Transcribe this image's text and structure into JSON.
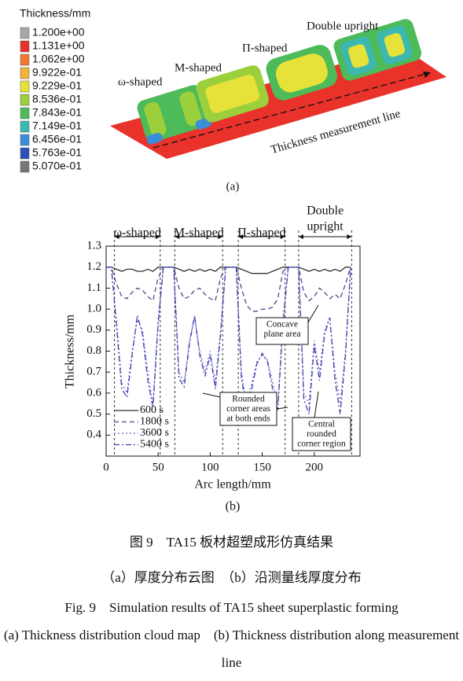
{
  "figure_a": {
    "legend_title": "Thickness/mm",
    "legend": [
      {
        "label": "1.200e+00",
        "color": "#a8a8a8"
      },
      {
        "label": "1.131e+00",
        "color": "#e8322a"
      },
      {
        "label": "1.062e+00",
        "color": "#f07830"
      },
      {
        "label": "9.922e-01",
        "color": "#f5b238"
      },
      {
        "label": "9.229e-01",
        "color": "#e6e23a"
      },
      {
        "label": "8.536e-01",
        "color": "#9ccf3c"
      },
      {
        "label": "7.843e-01",
        "color": "#4dbb5a"
      },
      {
        "label": "7.149e-01",
        "color": "#3cb8b0"
      },
      {
        "label": "6.456e-01",
        "color": "#3a8ed8"
      },
      {
        "label": "5.763e-01",
        "color": "#2c4fb8"
      },
      {
        "label": "5.070e-01",
        "color": "#777777"
      }
    ],
    "shape_labels": [
      "ω-shaped",
      "M-shaped",
      "Π-shaped",
      "Double upright"
    ],
    "line_label": "Thickness measurement line",
    "panel_label": "(a)"
  },
  "chart_data": {
    "type": "line",
    "xlabel": "Arc length/mm",
    "ylabel": "Thickness/mm",
    "panel_label": "(b)",
    "xlim": [
      0,
      244
    ],
    "ylim": [
      0.3,
      1.3
    ],
    "xticks": [
      0,
      50,
      100,
      150,
      200
    ],
    "yticks": [
      0.4,
      0.5,
      0.6,
      0.7,
      0.8,
      0.9,
      {
        "value": 1,
        "label": "1.0"
      },
      1.1,
      1.2,
      1.3
    ],
    "x": [
      0,
      5,
      10,
      15,
      20,
      25,
      30,
      35,
      40,
      45,
      50,
      55,
      60,
      65,
      70,
      75,
      80,
      85,
      90,
      95,
      100,
      105,
      110,
      115,
      120,
      125,
      130,
      135,
      140,
      145,
      150,
      155,
      160,
      165,
      170,
      175,
      180,
      185,
      190,
      195,
      200,
      205,
      210,
      215,
      220,
      225,
      230,
      235
    ],
    "series": [
      {
        "name": "600 s",
        "color": "#333333",
        "dash": "",
        "values": [
          1.2,
          1.2,
          1.19,
          1.18,
          1.19,
          1.19,
          1.18,
          1.18,
          1.19,
          1.18,
          1.2,
          1.2,
          1.2,
          1.2,
          1.19,
          1.18,
          1.19,
          1.18,
          1.19,
          1.18,
          1.19,
          1.18,
          1.2,
          1.2,
          1.2,
          1.2,
          1.19,
          1.18,
          1.17,
          1.17,
          1.17,
          1.17,
          1.18,
          1.19,
          1.2,
          1.2,
          1.2,
          1.2,
          1.19,
          1.18,
          1.19,
          1.18,
          1.19,
          1.18,
          1.19,
          1.18,
          1.2,
          1.2
        ]
      },
      {
        "name": "1800 s",
        "color": "#4a4a8a",
        "dash": "6 4",
        "values": [
          1.2,
          1.2,
          1.12,
          1.06,
          1.05,
          1.08,
          1.1,
          1.09,
          1.06,
          1.04,
          1.15,
          1.2,
          1.2,
          1.2,
          1.1,
          1.05,
          1.06,
          1.09,
          1.1,
          1.07,
          1.05,
          1.04,
          1.15,
          1.2,
          1.2,
          1.2,
          1.1,
          1.02,
          0.99,
          0.99,
          1.0,
          1.0,
          1.01,
          1.05,
          1.18,
          1.2,
          1.2,
          1.2,
          1.08,
          1.04,
          1.06,
          1.1,
          1.08,
          1.05,
          1.07,
          1.05,
          1.12,
          1.2
        ]
      },
      {
        "name": "3600 s",
        "color": "#6a6ad0",
        "dash": "2 3",
        "values": [
          1.2,
          1.2,
          0.95,
          0.65,
          0.6,
          0.8,
          0.95,
          0.9,
          0.7,
          0.55,
          0.95,
          1.2,
          1.2,
          1.2,
          0.7,
          0.65,
          0.85,
          0.96,
          0.8,
          0.7,
          0.8,
          0.65,
          0.9,
          1.2,
          1.2,
          1.2,
          0.7,
          0.55,
          0.65,
          0.75,
          0.78,
          0.76,
          0.65,
          0.55,
          0.95,
          1.2,
          1.2,
          1.2,
          0.6,
          0.55,
          0.85,
          0.7,
          0.9,
          0.96,
          0.7,
          0.55,
          0.8,
          1.2
        ]
      },
      {
        "name": "5400 s",
        "color": "#4040b0",
        "dash": "7 3 2 3",
        "values": [
          1.2,
          1.2,
          0.92,
          0.62,
          0.58,
          0.78,
          0.97,
          0.88,
          0.66,
          0.53,
          0.93,
          1.2,
          1.2,
          1.2,
          0.67,
          0.63,
          0.83,
          0.97,
          0.78,
          0.68,
          0.78,
          0.62,
          0.88,
          1.2,
          1.2,
          1.2,
          0.67,
          0.52,
          0.62,
          0.74,
          0.79,
          0.75,
          0.62,
          0.52,
          0.93,
          1.2,
          1.2,
          1.2,
          0.57,
          0.5,
          0.83,
          0.66,
          0.88,
          0.96,
          0.66,
          0.5,
          0.78,
          1.2
        ]
      }
    ],
    "regions": [
      {
        "label": "ω-shaped",
        "range": [
          8,
          52
        ]
      },
      {
        "label": "M-shaped",
        "range": [
          66,
          112
        ]
      },
      {
        "label": "Π-shaped",
        "range": [
          127,
          172
        ]
      },
      {
        "label": [
          "Double",
          "upright"
        ],
        "range": [
          185,
          236
        ]
      }
    ],
    "annotations": [
      {
        "lines": [
          "Concave",
          "plane area"
        ]
      },
      {
        "lines": [
          "Rounded",
          "corner areas",
          "at both ends"
        ]
      },
      {
        "lines": [
          "Central",
          "rounded",
          "corner region"
        ]
      }
    ]
  },
  "captions": {
    "cn_title": "图 9　TA15 板材超塑成形仿真结果",
    "cn_sub": "（a）厚度分布云图　（b）沿测量线厚度分布",
    "en_title": "Fig. 9　Simulation results of TA15 sheet superplastic forming",
    "en_sub": "(a) Thickness distribution cloud map　(b) Thickness distribution along measurement line"
  }
}
